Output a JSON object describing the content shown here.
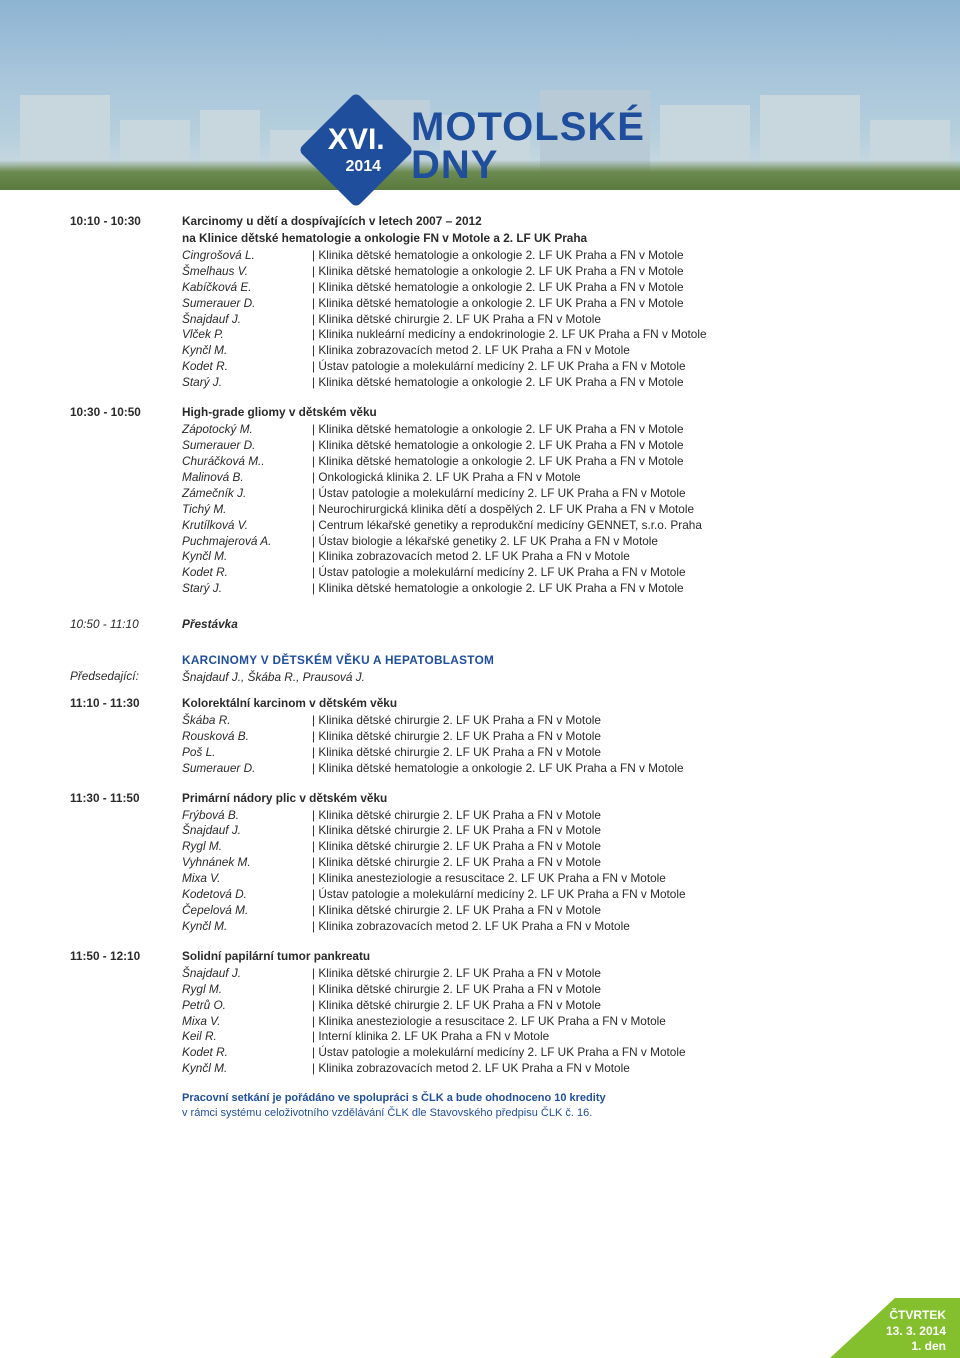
{
  "logo": {
    "roman": "XVI.",
    "year": "2014",
    "line1": "MOTOLSKÉ",
    "line2": "DNY"
  },
  "blocks": [
    {
      "time": "10:10 - 10:30",
      "title": "Karcinomy u dětí a dospívajících v letech 2007 – 2012",
      "subtitle": "na Klinice dětské hematologie a onkologie FN v Motole a 2. LF UK Praha",
      "rows": [
        {
          "a": "Cingrošová L.",
          "aff": "| Klinika dětské hematologie a onkologie 2. LF UK Praha a FN v Motole"
        },
        {
          "a": "Šmelhaus V.",
          "aff": "| Klinika dětské hematologie a onkologie 2. LF UK Praha a FN v Motole"
        },
        {
          "a": "Kabíčková E.",
          "aff": "| Klinika dětské hematologie a onkologie 2. LF UK Praha a FN v Motole"
        },
        {
          "a": "Sumerauer D.",
          "aff": "| Klinika dětské hematologie a onkologie 2. LF UK Praha a FN v Motole"
        },
        {
          "a": "Šnajdauf J.",
          "aff": "| Klinika dětské chirurgie 2. LF UK Praha a FN v Motole"
        },
        {
          "a": "Vlček P.",
          "aff": "| Klinika nukleární medicíny a endokrinologie 2. LF UK Praha a FN v Motole"
        },
        {
          "a": "Kynčl M.",
          "aff": "| Klinika zobrazovacích metod 2. LF UK Praha a FN v Motole"
        },
        {
          "a": "Kodet R.",
          "aff": "| Ústav patologie a molekulární medicíny 2. LF UK Praha a FN v Motole"
        },
        {
          "a": "Starý J.",
          "aff": "| Klinika dětské hematologie a onkologie 2. LF UK Praha a FN v Motole"
        }
      ]
    },
    {
      "time": "10:30 - 10:50",
      "title": "High-grade gliomy v dětském věku",
      "rows": [
        {
          "a": "Zápotocký M.",
          "aff": "| Klinika dětské hematologie a onkologie 2. LF UK Praha a FN v Motole"
        },
        {
          "a": "Sumerauer D.",
          "aff": "| Klinika dětské hematologie a onkologie 2. LF UK Praha a FN v Motole"
        },
        {
          "a": "Churáčková M..",
          "aff": "| Klinika dětské hematologie a onkologie 2. LF UK Praha a FN v Motole"
        },
        {
          "a": "Malinová B.",
          "aff": "| Onkologická klinika 2. LF UK Praha a FN v Motole"
        },
        {
          "a": "Zámečník J.",
          "aff": "| Ústav patologie a molekulární medicíny 2. LF UK Praha a FN v Motole"
        },
        {
          "a": "Tichý M.",
          "aff": "| Neurochirurgická klinika dětí a dospělých 2. LF UK Praha a FN v Motole"
        },
        {
          "a": "Krutílková V.",
          "aff": "| Centrum lékařské genetiky a reprodukční medicíny GENNET, s.r.o. Praha"
        },
        {
          "a": "Puchmajerová A.",
          "aff": "| Ústav biologie a lékařské genetiky 2. LF UK Praha a FN v Motole"
        },
        {
          "a": "Kynčl M.",
          "aff": "| Klinika zobrazovacích metod 2. LF UK Praha a FN v Motole"
        },
        {
          "a": "Kodet R.",
          "aff": "| Ústav patologie a molekulární medicíny 2. LF UK Praha a FN v Motole"
        },
        {
          "a": "Starý J.",
          "aff": "| Klinika dětské hematologie a onkologie 2. LF UK Praha a FN v Motole"
        }
      ]
    }
  ],
  "break": {
    "time": "10:50 - 11:10",
    "label": "Přestávka"
  },
  "section2": {
    "chair_label": "Předsedající:",
    "heading": "KARCINOMY V DĚTSKÉM VĚKU A HEPATOBLASTOM",
    "chairs": "Šnajdauf J., Škába R., Prausová J."
  },
  "blocks2": [
    {
      "time": "11:10 - 11:30",
      "title": "Kolorektální karcinom v dětském věku",
      "rows": [
        {
          "a": "Škába R.",
          "aff": "| Klinika dětské chirurgie 2. LF UK Praha a FN v Motole"
        },
        {
          "a": "Rousková B.",
          "aff": "| Klinika dětské chirurgie 2. LF UK Praha a FN v Motole"
        },
        {
          "a": "Poš L.",
          "aff": "| Klinika dětské chirurgie 2. LF UK Praha a FN v Motole"
        },
        {
          "a": "Sumerauer D.",
          "aff": "| Klinika dětské hematologie a onkologie 2. LF UK Praha a FN v Motole"
        }
      ]
    },
    {
      "time": "11:30 - 11:50",
      "title": "Primární nádory plic v dětském věku",
      "rows": [
        {
          "a": "Frýbová B.",
          "aff": "| Klinika dětské chirurgie 2. LF UK Praha a FN v Motole"
        },
        {
          "a": "Šnajdauf J.",
          "aff": "| Klinika dětské chirurgie 2. LF UK Praha a FN v Motole"
        },
        {
          "a": "Rygl M.",
          "aff": "| Klinika dětské chirurgie 2. LF UK Praha a FN v Motole"
        },
        {
          "a": "Vyhnánek M.",
          "aff": "| Klinika dětské chirurgie 2. LF UK Praha a FN v Motole"
        },
        {
          "a": "Mixa V.",
          "aff": "| Klinika anesteziologie a resuscitace 2. LF UK Praha a FN v Motole"
        },
        {
          "a": "Kodetová D.",
          "aff": "| Ústav patologie a molekulární medicíny 2. LF UK Praha a FN v Motole"
        },
        {
          "a": "Čepelová M.",
          "aff": "| Klinika dětské chirurgie 2. LF UK Praha a FN v Motole"
        },
        {
          "a": "Kynčl M.",
          "aff": "| Klinika zobrazovacích metod 2. LF UK Praha a FN v Motole"
        }
      ]
    },
    {
      "time": "11:50 - 12:10",
      "title": "Solidní papilární tumor pankreatu",
      "rows": [
        {
          "a": "Šnajdauf J.",
          "aff": "| Klinika dětské chirurgie 2. LF UK Praha a FN v Motole"
        },
        {
          "a": "Rygl M.",
          "aff": "| Klinika dětské chirurgie 2. LF UK Praha a FN v Motole"
        },
        {
          "a": "Petrů O.",
          "aff": "| Klinika dětské chirurgie 2. LF UK Praha a FN v Motole"
        },
        {
          "a": "Mixa V.",
          "aff": "| Klinika anesteziologie a resuscitace 2. LF UK Praha a FN v Motole"
        },
        {
          "a": "Keil R.",
          "aff": "| Interní klinika 2. LF UK Praha a FN v Motole"
        },
        {
          "a": "Kodet R.",
          "aff": "| Ústav patologie a molekulární medicíny 2. LF UK Praha a FN v Motole"
        },
        {
          "a": "Kynčl M.",
          "aff": "| Klinika zobrazovacích metod 2. LF UK Praha a FN v Motole"
        }
      ]
    }
  ],
  "footer": {
    "l1": "Pracovní setkání je pořádáno ve spolupráci s ČLK a bude ohodnoceno 10 kredity",
    "l2": "v rámci systému celoživotního vzdělávání ČLK dle Stavovského předpisu ČLK č. 16."
  },
  "datetab": {
    "day": "ČTVRTEK",
    "date": "13. 3. 2014",
    "dayn": "1. den"
  }
}
